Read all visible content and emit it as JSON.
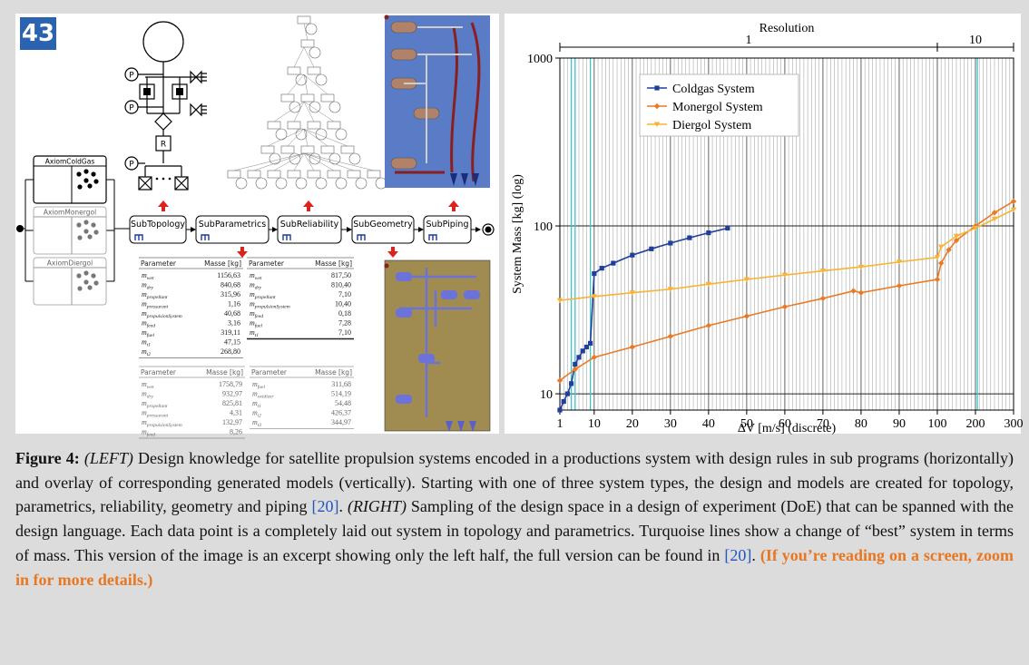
{
  "badge": "43",
  "diagram": {
    "axioms": [
      "AxiomColdGas",
      "AxiomMonergol",
      "AxiomDiergol"
    ],
    "sub_programs": [
      "SubTopology",
      "SubParametrics",
      "SubReliability",
      "SubGeometry",
      "SubPiping"
    ],
    "symbols": [
      "P",
      "P",
      "R",
      "P"
    ],
    "tables": [
      {
        "header": [
          "Parameter",
          "Masse [kg]"
        ],
        "rows": [
          [
            {
              "base": "m",
              "sub": "wet"
            },
            "1156,63"
          ],
          [
            {
              "base": "m",
              "sub": "dry"
            },
            "840,68"
          ],
          [
            {
              "base": "m",
              "sub": "propellant"
            },
            "315,96"
          ],
          [
            {
              "base": "m",
              "sub": "pressurant"
            },
            "1,16"
          ],
          [
            {
              "base": "m",
              "sub": "propulsionSystem"
            },
            "40,68"
          ],
          [
            {
              "base": "m",
              "sub": "feed"
            },
            "3,16"
          ],
          [
            {
              "base": "m",
              "sub": "fuel"
            },
            "319,11"
          ],
          [
            {
              "base": "m",
              "sub": "t1"
            },
            "47,15"
          ],
          [
            {
              "base": "m",
              "sub": "t2"
            },
            "268,80"
          ]
        ]
      },
      {
        "header": [
          "Parameter",
          "Masse [kg]"
        ],
        "rows": [
          [
            {
              "base": "m",
              "sub": "wet"
            },
            "817,50"
          ],
          [
            {
              "base": "m",
              "sub": "dry"
            },
            "810,40"
          ],
          [
            {
              "base": "m",
              "sub": "propellant"
            },
            "7,10"
          ],
          [
            {
              "base": "m",
              "sub": "propulsionSystem"
            },
            "10,40"
          ],
          [
            {
              "base": "m",
              "sub": "feed"
            },
            "0,18"
          ],
          [
            {
              "base": "m",
              "sub": "fuel"
            },
            "7,28"
          ],
          [
            {
              "base": "m",
              "sub": "t1"
            },
            "7,10"
          ]
        ]
      },
      {
        "header": [
          "Parameter",
          "Masse [kg]"
        ],
        "rows": [
          [
            {
              "base": "m",
              "sub": "wet"
            },
            "1758,79"
          ],
          [
            {
              "base": "m",
              "sub": "dry"
            },
            "932,97"
          ],
          [
            {
              "base": "m",
              "sub": "propellant"
            },
            "825,81"
          ],
          [
            {
              "base": "m",
              "sub": "pressurant"
            },
            "4,31"
          ],
          [
            {
              "base": "m",
              "sub": "propulsionSystem"
            },
            "132,97"
          ],
          [
            {
              "base": "m",
              "sub": "feed"
            },
            "8,26"
          ]
        ]
      },
      {
        "header": [
          "Parameter",
          "Masse [kg]"
        ],
        "rows": [
          [
            {
              "base": "m",
              "sub": "fuel"
            },
            "311,68"
          ],
          [
            {
              "base": "m",
              "sub": "oxidizer"
            },
            "514,19"
          ],
          [
            {
              "base": "m",
              "sub": "t1"
            },
            "54,48"
          ],
          [
            {
              "base": "m",
              "sub": "t2"
            },
            "426,37"
          ],
          [
            {
              "base": "m",
              "sub": "t3"
            },
            "344,97"
          ]
        ]
      }
    ]
  },
  "chart_data": {
    "type": "line",
    "x_label": "ΔV [m/s] (discrete)",
    "y_label": "System Mass [kg] (log)",
    "y_log": true,
    "ylim": [
      8,
      1000
    ],
    "yticks": [
      10,
      100,
      1000
    ],
    "xlim": [
      1,
      300
    ],
    "xticks": [
      1,
      10,
      20,
      30,
      40,
      50,
      60,
      70,
      80,
      90,
      100,
      200,
      300
    ],
    "resolution": {
      "label": "Resolution",
      "segments": [
        {
          "step": 1,
          "range": [
            1,
            100
          ]
        },
        {
          "step": 10,
          "range": [
            100,
            300
          ]
        }
      ]
    },
    "grid": true,
    "highlight_x": [
      4,
      5,
      9,
      205
    ],
    "highlight_color": "#3fc1cf",
    "legend": "upper left",
    "series": [
      {
        "name": "Coldgas System",
        "color": "#1f3f99",
        "marker": "square",
        "x": [
          1,
          2,
          3,
          4,
          5,
          6,
          7,
          8,
          9,
          10,
          12,
          15,
          20,
          25,
          30,
          35,
          40,
          45
        ],
        "values": [
          8,
          9,
          10,
          11.5,
          15,
          16.5,
          18,
          19,
          20,
          52,
          56,
          60,
          67,
          73,
          79,
          85,
          91,
          97
        ]
      },
      {
        "name": "Monergol System",
        "color": "#ea7a24",
        "marker": "diamond",
        "x": [
          1,
          5,
          10,
          20,
          30,
          40,
          50,
          60,
          70,
          78,
          80,
          90,
          100,
          110,
          130,
          150,
          200,
          250,
          300
        ],
        "values": [
          12,
          14,
          16.5,
          19,
          22,
          25.5,
          29,
          33,
          37,
          41,
          40,
          44,
          48,
          60,
          72,
          82,
          100,
          120,
          140
        ]
      },
      {
        "name": "Diergol System",
        "color": "#f9b233",
        "marker": "triangle",
        "x": [
          1,
          10,
          20,
          30,
          40,
          50,
          60,
          70,
          80,
          90,
          100,
          110,
          150,
          200,
          250,
          300
        ],
        "values": [
          36,
          38,
          40,
          42,
          45,
          48,
          51,
          54,
          57,
          61,
          65,
          75,
          87,
          97,
          110,
          125
        ]
      }
    ]
  },
  "caption": [
    {
      "text": "Figure 4:",
      "style": "bold"
    },
    {
      "text": " (LEFT)",
      "style": "italic"
    },
    {
      "text": " Design knowledge for satellite propulsion systems encoded in a productions system with design rules in sub programs (horizontally) and overlay of corresponding generated models (vertically). Starting with one of three system types, the design and models are created for topology, parametrics, reliability, geometry and piping ",
      "style": "normal"
    },
    {
      "text": "[20]",
      "style": "cite"
    },
    {
      "text": ".",
      "style": "normal"
    },
    {
      "text": " (RIGHT)",
      "style": "italic"
    },
    {
      "text": " Sampling of the design space in a design of experiment (DoE) that can be spanned with the design language. Each data point is a completely laid out system in topology and parametrics. Turquoise lines show a change of “best” system in terms of mass. This version of the image is an excerpt showing only the left half, the full version can be found in ",
      "style": "normal"
    },
    {
      "text": "[20]",
      "style": "cite"
    },
    {
      "text": ". ",
      "style": "normal"
    },
    {
      "text": "(If you’re reading on a screen, zoom in for more details.)",
      "style": "highlight"
    }
  ]
}
